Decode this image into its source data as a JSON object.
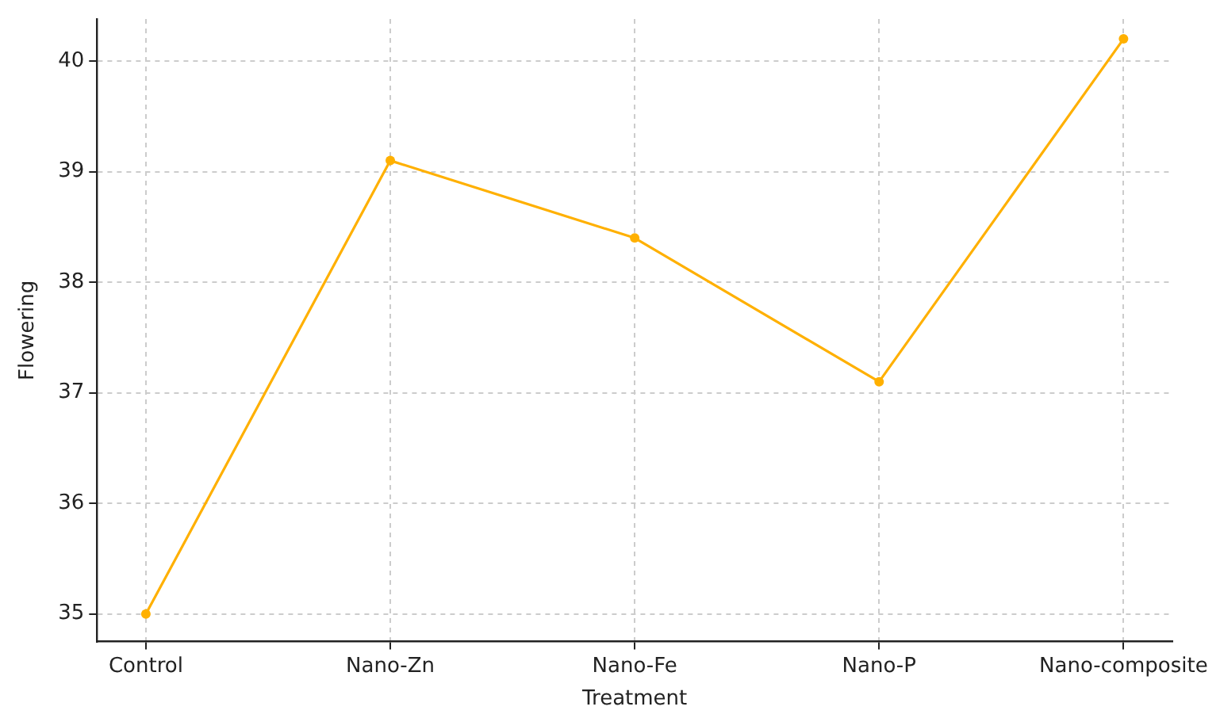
{
  "chart_data": {
    "type": "line",
    "xlabel": "Treatment",
    "ylabel": "Flowering",
    "categories": [
      "Control",
      "Nano-Zn",
      "Nano-Fe",
      "Nano-P",
      "Nano-composite"
    ],
    "series": [
      {
        "color": "#ffb000",
        "values": [
          35,
          39.1,
          38.4,
          37.1,
          40.2
        ]
      }
    ],
    "ylim": [
      34.75,
      40.38
    ],
    "yticks": [
      35,
      36,
      37,
      38,
      39,
      40
    ],
    "grid": true,
    "legend": false,
    "marker": "circle",
    "line_style": "solid"
  }
}
